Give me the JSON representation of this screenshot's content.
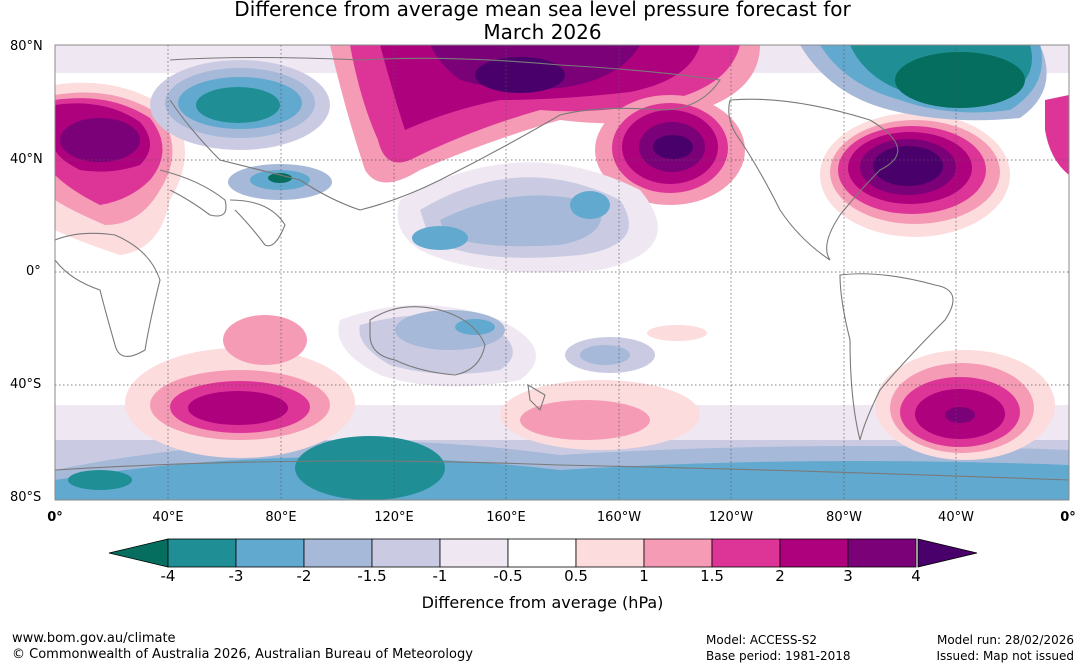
{
  "title": {
    "line1": "Difference from average mean sea level pressure forecast for",
    "line2": "March 2026"
  },
  "map": {
    "projection": "equirectangular",
    "region": "Global",
    "lat_labels": [
      "80°N",
      "40°N",
      "0°",
      "40°S",
      "80°S"
    ],
    "lon_labels": [
      "0°",
      "40°E",
      "80°E",
      "120°E",
      "160°E",
      "160°W",
      "120°W",
      "80°W",
      "40°W",
      "0°"
    ],
    "features": [
      {
        "name": "North Atlantic / Western Europe high anomaly",
        "lon": 15,
        "lat": 45,
        "value": 3
      },
      {
        "name": "North Pacific high anomaly",
        "lon": -145,
        "lat": 45,
        "value": 4
      },
      {
        "name": "Western North Atlantic high anomaly",
        "lon": -55,
        "lat": 38,
        "value": 4
      },
      {
        "name": "Siberia high anomaly",
        "lon": 140,
        "lat": 65,
        "value": 4
      },
      {
        "name": "Greenland low anomaly",
        "lon": -40,
        "lat": 68,
        "value": -4
      },
      {
        "name": "Central Asia low anomaly",
        "lon": 75,
        "lat": 60,
        "value": -3
      },
      {
        "name": "Tibet low anomaly",
        "lon": 80,
        "lat": 33,
        "value": -4
      },
      {
        "name": "South Atlantic high anomaly",
        "lon": -42,
        "lat": -50,
        "value": 4
      },
      {
        "name": "Southern Indian Ocean high anomaly",
        "lon": 65,
        "lat": -48,
        "value": 3
      },
      {
        "name": "South Pacific high anomaly",
        "lon": -170,
        "lat": -50,
        "value": 1.5
      },
      {
        "name": "Antarctic coastal low anomaly",
        "lon": 115,
        "lat": -70,
        "value": -4
      }
    ]
  },
  "colorbar": {
    "colors": [
      "#056e5e",
      "#1f8f95",
      "#62a9cf",
      "#a6b9d8",
      "#cacbe3",
      "#efe7f2",
      "#ffffff",
      "#fcdcdd",
      "#f59bb6",
      "#dd3597",
      "#ae017e",
      "#7a0177",
      "#49006a"
    ],
    "ticks": [
      "-4",
      "-3",
      "-2",
      "-1.5",
      "-1",
      "-0.5",
      "0.5",
      "1",
      "1.5",
      "2",
      "3",
      "4"
    ],
    "label": "Difference from average (hPa)"
  },
  "footer": {
    "website": "www.bom.gov.au/climate",
    "copyright": "© Commonwealth of Australia 2026, Australian Bureau of Meteorology",
    "model": "Model: ACCESS-S2",
    "base_period": "Base period: 1981-2018",
    "model_run": "Model run: 28/02/2026",
    "issued": "Issued: Map not issued"
  }
}
